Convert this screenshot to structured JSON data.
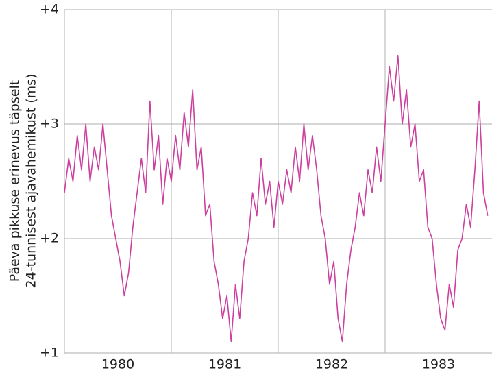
{
  "chart_data": {
    "type": "line",
    "y_label": [
      "Päeva pikkuse erinevus täpselt",
      "24-tunnisest ajavahemikust (ms)"
    ],
    "x": [
      1980.0,
      1980.04,
      1980.08,
      1980.12,
      1980.16,
      1980.2,
      1980.24,
      1980.28,
      1980.32,
      1980.36,
      1980.4,
      1980.44,
      1980.48,
      1980.52,
      1980.56,
      1980.6,
      1980.64,
      1980.68,
      1980.72,
      1980.76,
      1980.8,
      1980.84,
      1980.88,
      1980.92,
      1980.96,
      1981.0,
      1981.04,
      1981.08,
      1981.12,
      1981.16,
      1981.2,
      1981.24,
      1981.28,
      1981.32,
      1981.36,
      1981.4,
      1981.44,
      1981.48,
      1981.52,
      1981.56,
      1981.6,
      1981.64,
      1981.68,
      1981.72,
      1981.76,
      1981.8,
      1981.84,
      1981.88,
      1981.92,
      1981.96,
      1982.0,
      1982.04,
      1982.08,
      1982.12,
      1982.16,
      1982.2,
      1982.24,
      1982.28,
      1982.32,
      1982.36,
      1982.4,
      1982.44,
      1982.48,
      1982.52,
      1982.56,
      1982.6,
      1982.64,
      1982.68,
      1982.72,
      1982.76,
      1982.8,
      1982.84,
      1982.88,
      1982.92,
      1982.96,
      1983.0,
      1983.04,
      1983.08,
      1983.12,
      1983.16,
      1983.2,
      1983.24,
      1983.28,
      1983.32,
      1983.36,
      1983.4,
      1983.44,
      1983.48,
      1983.52,
      1983.56,
      1983.6,
      1983.64,
      1983.68,
      1983.72,
      1983.76,
      1983.8,
      1983.84,
      1983.88,
      1983.92,
      1983.96
    ],
    "series": [
      {
        "color": "#cc3f9e",
        "values": [
          2.4,
          2.7,
          2.5,
          2.9,
          2.6,
          3.0,
          2.5,
          2.8,
          2.6,
          3.0,
          2.6,
          2.2,
          2.0,
          1.8,
          1.5,
          1.7,
          2.1,
          2.4,
          2.7,
          2.4,
          3.2,
          2.6,
          2.9,
          2.3,
          2.7,
          2.5,
          2.9,
          2.6,
          3.1,
          2.8,
          3.3,
          2.6,
          2.8,
          2.2,
          2.3,
          1.8,
          1.6,
          1.3,
          1.5,
          1.1,
          1.6,
          1.3,
          1.8,
          2.0,
          2.4,
          2.2,
          2.7,
          2.3,
          2.5,
          2.1,
          2.5,
          2.3,
          2.6,
          2.4,
          2.8,
          2.5,
          3.0,
          2.6,
          2.9,
          2.6,
          2.2,
          2.0,
          1.6,
          1.8,
          1.3,
          1.1,
          1.6,
          1.9,
          2.1,
          2.4,
          2.2,
          2.6,
          2.4,
          2.8,
          2.5,
          3.0,
          3.5,
          3.2,
          3.6,
          3.0,
          3.3,
          2.8,
          3.0,
          2.5,
          2.6,
          2.1,
          2.0,
          1.6,
          1.3,
          1.2,
          1.6,
          1.4,
          1.9,
          2.0,
          2.3,
          2.1,
          2.6,
          3.2,
          2.4,
          2.2
        ]
      }
    ],
    "xlim": [
      1980,
      1984
    ],
    "xticks": [
      {
        "value": 1980.5,
        "label": "1980"
      },
      {
        "value": 1981.5,
        "label": "1981"
      },
      {
        "value": 1982.5,
        "label": "1982"
      },
      {
        "value": 1983.5,
        "label": "1983"
      }
    ],
    "xgrid": [
      1981,
      1982,
      1983
    ],
    "ylim": [
      1,
      4
    ],
    "yticks": [
      {
        "value": 1,
        "label": "+1"
      },
      {
        "value": 2,
        "label": "+2"
      },
      {
        "value": 3,
        "label": "+3"
      },
      {
        "value": 4,
        "label": "+4"
      }
    ],
    "grid": true
  }
}
